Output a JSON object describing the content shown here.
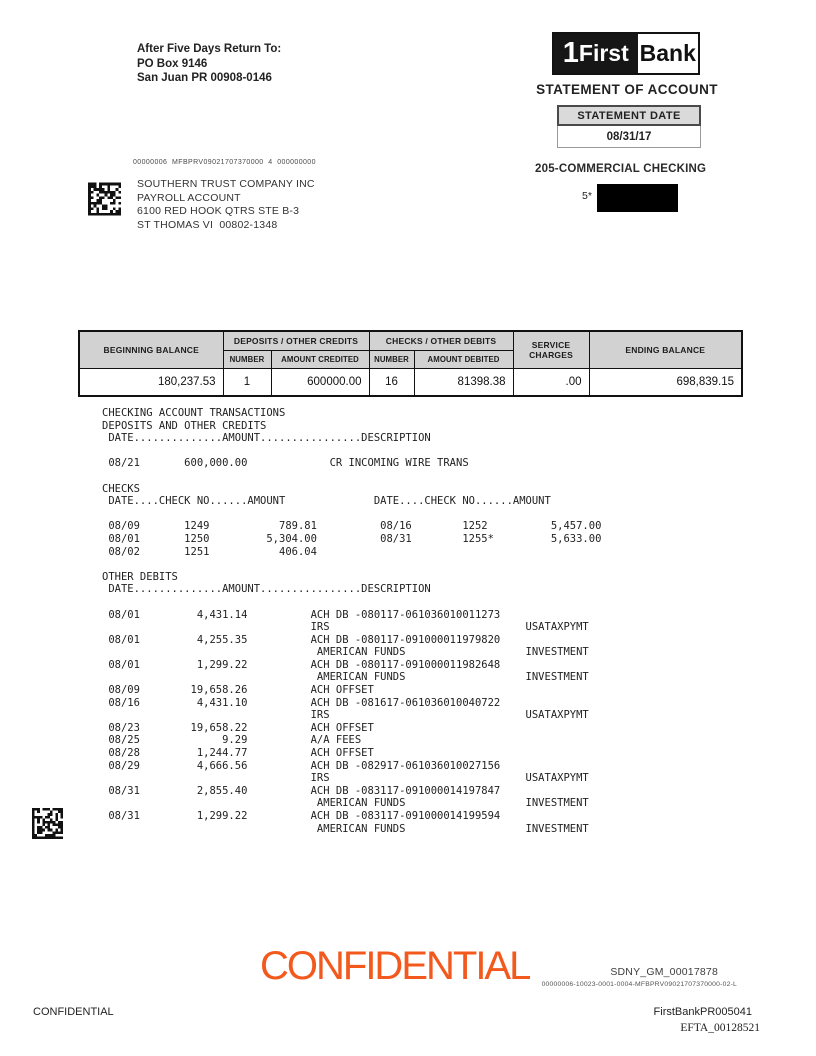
{
  "header": {
    "return_to": [
      "After Five Days Return To:",
      "PO Box 9146",
      "San Juan PR 00908-0146"
    ],
    "logo_one": "1",
    "logo_first": "First",
    "logo_bank": "Bank",
    "statement_of_account": "STATEMENT OF ACCOUNT",
    "statement_date_label": "STATEMENT DATE",
    "statement_date": "08/31/17"
  },
  "account": {
    "mail_code": "00000006  MFBPRV09021707370000  4  000000000",
    "holder": [
      "SOUTHERN TRUST COMPANY INC",
      "PAYROLL ACCOUNT",
      "6100 RED HOOK QTRS STE B-3",
      "ST THOMAS VI  00802-1348"
    ],
    "type": "205-COMMERCIAL CHECKING",
    "number_prefix": "5*"
  },
  "summary": {
    "col_beginning": "BEGINNING BALANCE",
    "col_deposits": "DEPOSITS / OTHER CREDITS",
    "col_checks": "CHECKS / OTHER DEBITS",
    "col_service": "SERVICE CHARGES",
    "col_ending": "ENDING BALANCE",
    "col_number": "NUMBER",
    "col_amount_credited": "AMOUNT CREDITED",
    "col_amount_debited": "AMOUNT DEBITED",
    "beginning_balance": "180,237.53",
    "deposits_number": "1",
    "deposits_amount": "600000.00",
    "checks_number": "16",
    "checks_amount": "81398.38",
    "service_charges": ".00",
    "ending_balance": "698,839.15"
  },
  "transactions": {
    "lines": [
      "CHECKING ACCOUNT TRANSACTIONS",
      "DEPOSITS AND OTHER CREDITS",
      " DATE..............AMOUNT................DESCRIPTION",
      "",
      " 08/21       600,000.00             CR INCOMING WIRE TRANS",
      "",
      "CHECKS",
      " DATE....CHECK NO......AMOUNT              DATE....CHECK NO......AMOUNT",
      "",
      " 08/09       1249           789.81          08/16        1252          5,457.00",
      " 08/01       1250         5,304.00          08/31        1255*         5,633.00",
      " 08/02       1251           406.04",
      "",
      "OTHER DEBITS",
      " DATE..............AMOUNT................DESCRIPTION",
      "",
      " 08/01         4,431.14          ACH DB -080117-061036010011273",
      "                                 IRS                               USATAXPYMT",
      " 08/01         4,255.35          ACH DB -080117-091000011979820",
      "                                  AMERICAN FUNDS                   INVESTMENT",
      " 08/01         1,299.22          ACH DB -080117-091000011982648",
      "                                  AMERICAN FUNDS                   INVESTMENT",
      " 08/09        19,658.26          ACH OFFSET",
      " 08/16         4,431.10          ACH DB -081617-061036010040722",
      "                                 IRS                               USATAXPYMT",
      " 08/23        19,658.22          ACH OFFSET",
      " 08/25             9.29          A/A FEES",
      " 08/28         1,244.77          ACH OFFSET",
      " 08/29         4,666.56          ACH DB -082917-061036010027156",
      "                                 IRS                               USATAXPYMT",
      " 08/31         2,855.40          ACH DB -083117-091000014197847",
      "                                  AMERICAN FUNDS                   INVESTMENT",
      " 08/31         1,299.22          ACH DB -083117-091000014199594",
      "                                  AMERICAN FUNDS                   INVESTMENT"
    ]
  },
  "footer": {
    "confidential_watermark": "CONFIDENTIAL",
    "sdny_stamp": "SDNY_GM_00017878",
    "production_code": "00000006-10023-0001-0004-MFBPRV09021707370000-02-L",
    "confidential": "CONFIDENTIAL",
    "bates_number": "FirstBankPR005041",
    "efta_number": "EFTA_00128521"
  },
  "colors": {
    "watermark_orange": "#f3591d",
    "redaction_black": "#000000",
    "table_header_gray": "#d2d2d2"
  }
}
